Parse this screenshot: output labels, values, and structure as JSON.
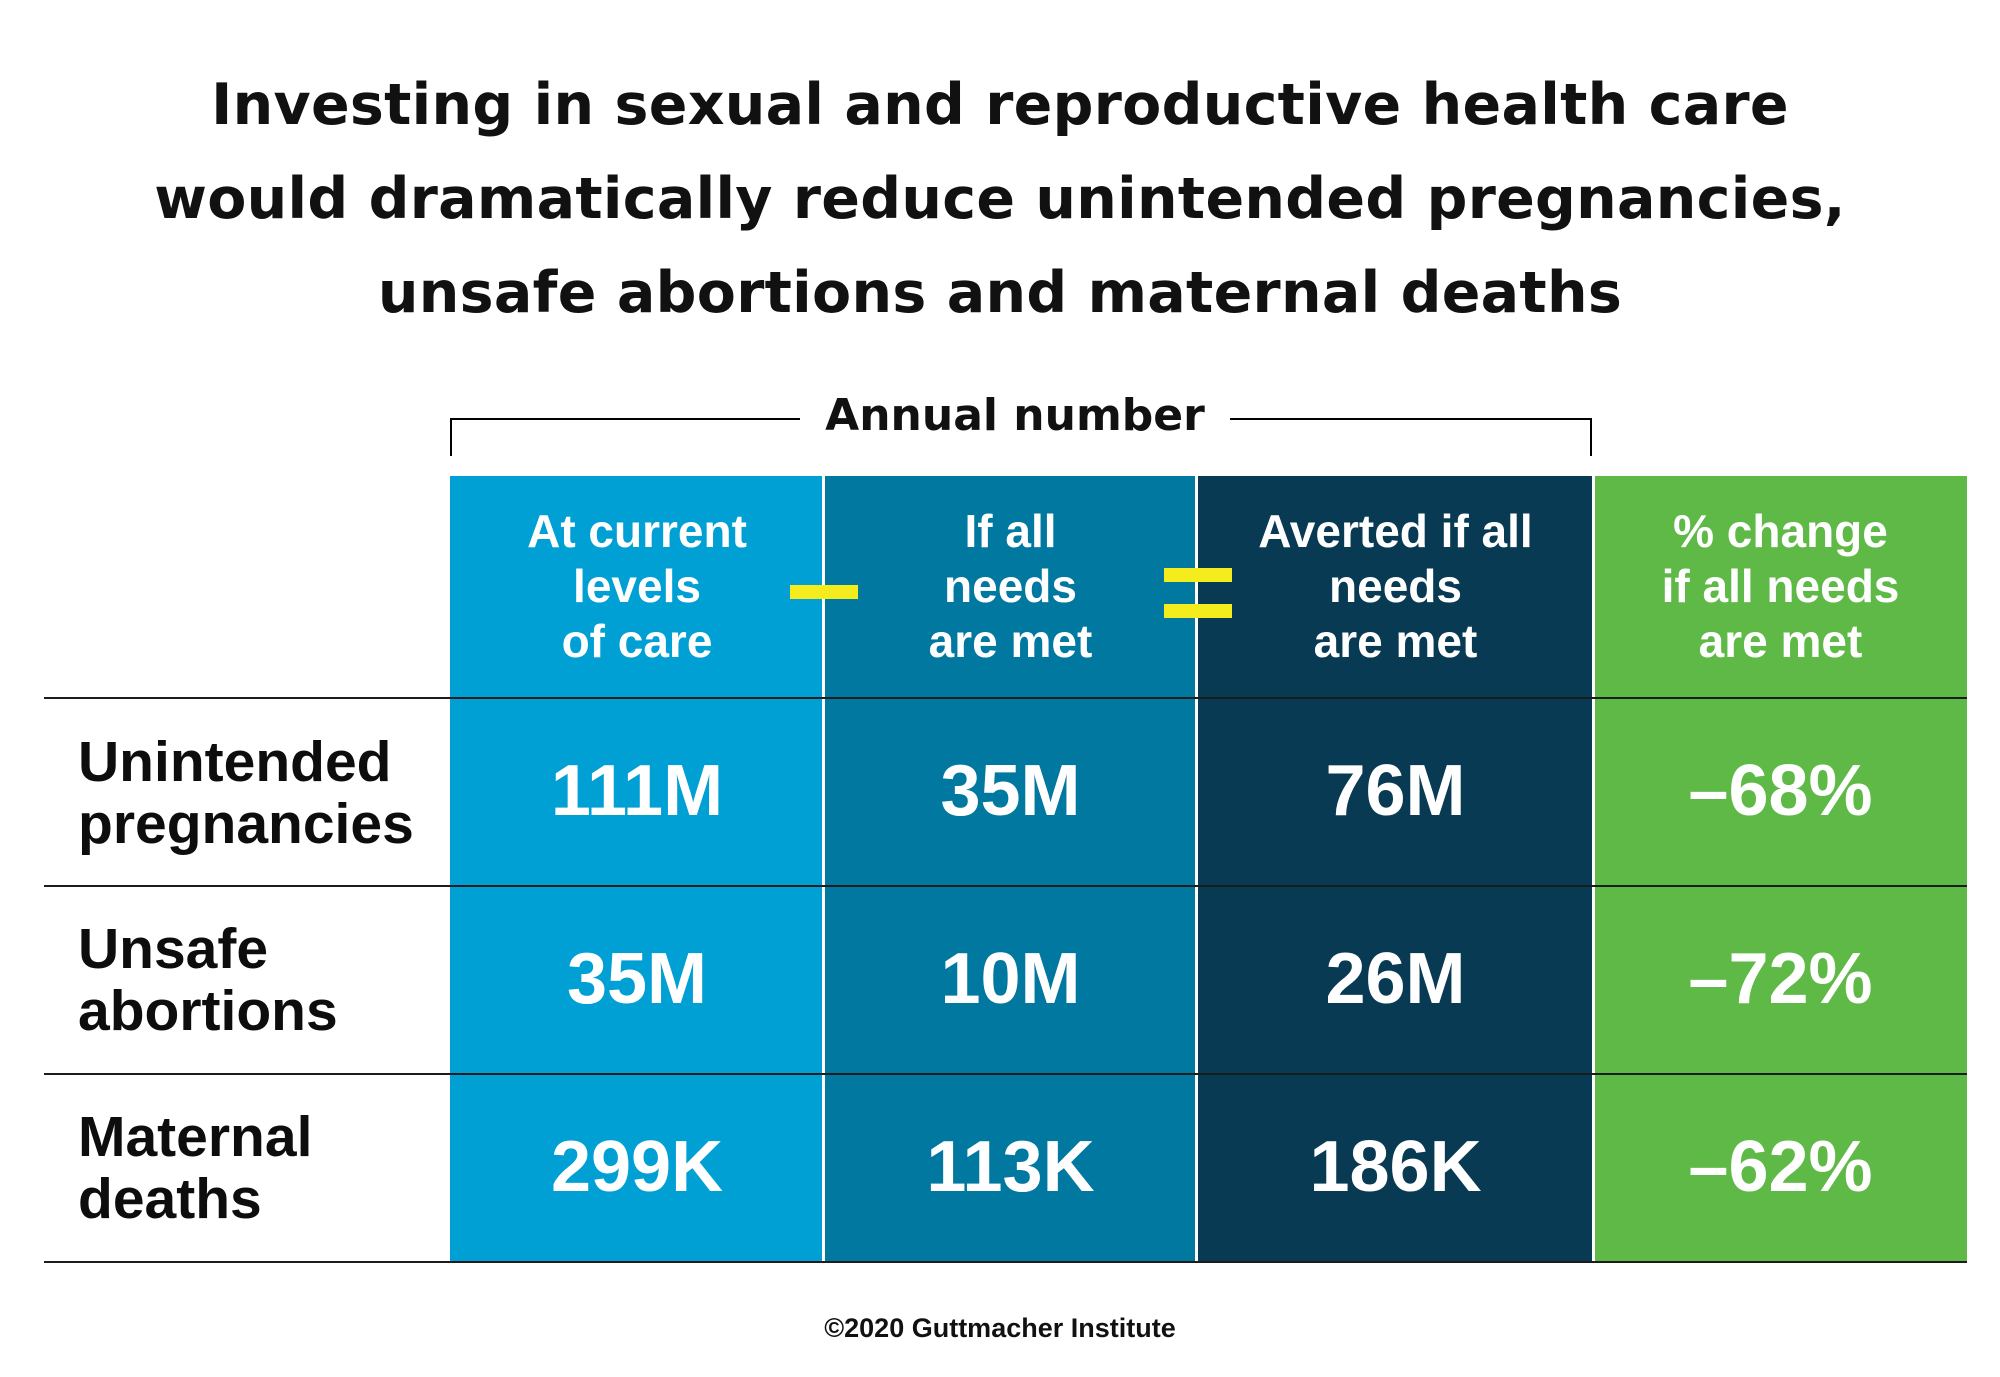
{
  "title_lines": [
    "Investing in sexual and reproductive health care",
    "would dramatically reduce unintended pregnancies,",
    "unsafe abortions and maternal deaths"
  ],
  "bracket_label": "Annual number",
  "columns": [
    {
      "header_lines": [
        "At current",
        "levels",
        "of care"
      ],
      "color": "#009fd4"
    },
    {
      "header_lines": [
        "If all",
        "needs",
        "are met"
      ],
      "color": "#00789f"
    },
    {
      "header_lines": [
        "Averted if all",
        "needs",
        "are met"
      ],
      "color": "#083a53"
    },
    {
      "header_lines": [
        "% change",
        "if all needs",
        "are met"
      ],
      "color": "#5fb946"
    }
  ],
  "operators": {
    "minus": "minus-sign",
    "equals": "equals-sign",
    "color": "#f4ec1c"
  },
  "rows": [
    {
      "label_lines": [
        "Unintended",
        "pregnancies"
      ],
      "values": [
        "111M",
        "35M",
        "76M",
        "–68%"
      ]
    },
    {
      "label_lines": [
        "Unsafe",
        "abortions"
      ],
      "values": [
        "35M",
        "10M",
        "26M",
        "–72%"
      ]
    },
    {
      "label_lines": [
        "Maternal",
        "deaths"
      ],
      "values": [
        "299K",
        "113K",
        "186K",
        "–62%"
      ]
    }
  ],
  "footer": "©2020 Guttmacher Institute",
  "chart_data": {
    "type": "table",
    "title": "Investing in sexual and reproductive health care would dramatically reduce unintended pregnancies, unsafe abortions and maternal deaths",
    "group_label": "Annual number",
    "columns": [
      "At current levels of care",
      "If all needs are met",
      "Averted if all needs are met",
      "% change if all needs are met"
    ],
    "rows": [
      {
        "label": "Unintended pregnancies",
        "values": [
          "111M",
          "35M",
          "76M",
          "–68%"
        ]
      },
      {
        "label": "Unsafe abortions",
        "values": [
          "35M",
          "10M",
          "26M",
          "–72%"
        ]
      },
      {
        "label": "Maternal deaths",
        "values": [
          "299K",
          "113K",
          "186K",
          "–62%"
        ]
      }
    ]
  }
}
